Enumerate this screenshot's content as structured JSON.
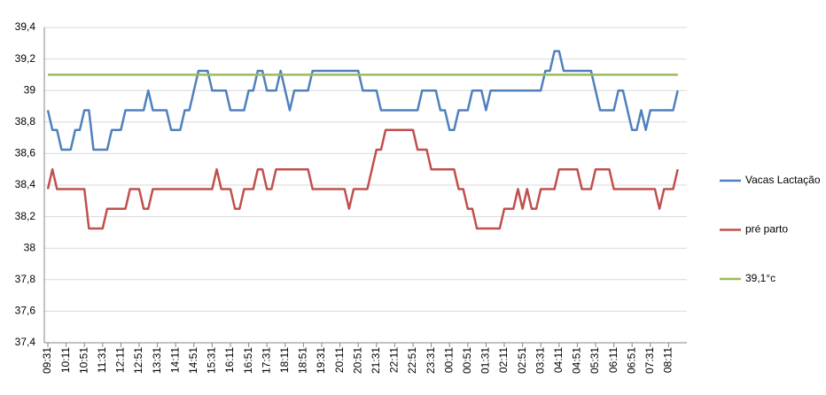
{
  "chart_data": {
    "type": "line",
    "categories": [
      "09:31",
      null,
      null,
      null,
      "10:11",
      null,
      null,
      null,
      "10:51",
      null,
      null,
      null,
      "11:31",
      null,
      null,
      null,
      "12:11",
      null,
      null,
      null,
      "12:51",
      null,
      null,
      null,
      "13:31",
      null,
      null,
      null,
      "14:11",
      null,
      null,
      null,
      "14:51",
      null,
      null,
      null,
      "15:31",
      null,
      null,
      null,
      "16:11",
      null,
      null,
      null,
      "16:51",
      null,
      null,
      null,
      "17:31",
      null,
      null,
      null,
      "18:11",
      null,
      null,
      null,
      "18:51",
      null,
      null,
      null,
      "19:31",
      null,
      null,
      null,
      "20:11",
      null,
      null,
      null,
      "20:51",
      null,
      null,
      null,
      "21:31",
      null,
      null,
      null,
      "22:11",
      null,
      null,
      null,
      "22:51",
      null,
      null,
      null,
      "23:31",
      null,
      null,
      null,
      "00:11",
      null,
      null,
      null,
      "00:51",
      null,
      null,
      null,
      "01:31",
      null,
      null,
      null,
      "02:11",
      null,
      null,
      null,
      "02:51",
      null,
      null,
      null,
      "03:31",
      null,
      null,
      null,
      "04:11",
      null,
      null,
      null,
      "04:51",
      null,
      null,
      null,
      "05:31",
      null,
      null,
      null,
      "06:11",
      null,
      null,
      null,
      "06:51",
      null,
      null,
      null,
      "07:31",
      null,
      null,
      null,
      "08:11",
      null,
      null
    ],
    "series": [
      {
        "name": "Vacas Lactação",
        "color": "#4f81bd",
        "values": [
          38.875,
          38.75,
          38.75,
          38.625,
          38.625,
          38.625,
          38.75,
          38.75,
          38.875,
          38.875,
          38.625,
          38.625,
          38.625,
          38.625,
          38.75,
          38.75,
          38.75,
          38.875,
          38.875,
          38.875,
          38.875,
          38.875,
          39,
          38.875,
          38.875,
          38.875,
          38.875,
          38.75,
          38.75,
          38.75,
          38.875,
          38.875,
          39,
          39.125,
          39.125,
          39.125,
          39,
          39,
          39,
          39,
          38.875,
          38.875,
          38.875,
          38.875,
          39,
          39,
          39.125,
          39.125,
          39,
          39,
          39,
          39.125,
          39,
          38.875,
          39,
          39,
          39,
          39,
          39.125,
          39.125,
          39.125,
          39.125,
          39.125,
          39.125,
          39.125,
          39.125,
          39.125,
          39.125,
          39.125,
          39,
          39,
          39,
          39,
          38.875,
          38.875,
          38.875,
          38.875,
          38.875,
          38.875,
          38.875,
          38.875,
          38.875,
          39,
          39,
          39,
          39,
          38.875,
          38.875,
          38.75,
          38.75,
          38.875,
          38.875,
          38.875,
          39,
          39,
          39,
          38.875,
          39,
          39,
          39,
          39,
          39,
          39,
          39,
          39,
          39,
          39,
          39,
          39,
          39.125,
          39.125,
          39.25,
          39.25,
          39.125,
          39.125,
          39.125,
          39.125,
          39.125,
          39.125,
          39.125,
          39,
          38.875,
          38.875,
          38.875,
          38.875,
          39,
          39,
          38.875,
          38.75,
          38.75,
          38.875,
          38.75,
          38.875,
          38.875,
          38.875,
          38.875,
          38.875,
          38.875,
          39
        ]
      },
      {
        "name": "pré parto",
        "color": "#c0504d",
        "values": [
          38.375,
          38.5,
          38.375,
          38.375,
          38.375,
          38.375,
          38.375,
          38.375,
          38.375,
          38.125,
          38.125,
          38.125,
          38.125,
          38.25,
          38.25,
          38.25,
          38.25,
          38.25,
          38.375,
          38.375,
          38.375,
          38.25,
          38.25,
          38.375,
          38.375,
          38.375,
          38.375,
          38.375,
          38.375,
          38.375,
          38.375,
          38.375,
          38.375,
          38.375,
          38.375,
          38.375,
          38.375,
          38.5,
          38.375,
          38.375,
          38.375,
          38.25,
          38.25,
          38.375,
          38.375,
          38.375,
          38.5,
          38.5,
          38.375,
          38.375,
          38.5,
          38.5,
          38.5,
          38.5,
          38.5,
          38.5,
          38.5,
          38.5,
          38.375,
          38.375,
          38.375,
          38.375,
          38.375,
          38.375,
          38.375,
          38.375,
          38.25,
          38.375,
          38.375,
          38.375,
          38.375,
          38.5,
          38.625,
          38.625,
          38.75,
          38.75,
          38.75,
          38.75,
          38.75,
          38.75,
          38.75,
          38.625,
          38.625,
          38.625,
          38.5,
          38.5,
          38.5,
          38.5,
          38.5,
          38.5,
          38.375,
          38.375,
          38.25,
          38.25,
          38.125,
          38.125,
          38.125,
          38.125,
          38.125,
          38.125,
          38.25,
          38.25,
          38.25,
          38.375,
          38.25,
          38.375,
          38.25,
          38.25,
          38.375,
          38.375,
          38.375,
          38.375,
          38.5,
          38.5,
          38.5,
          38.5,
          38.5,
          38.375,
          38.375,
          38.375,
          38.5,
          38.5,
          38.5,
          38.5,
          38.375,
          38.375,
          38.375,
          38.375,
          38.375,
          38.375,
          38.375,
          38.375,
          38.375,
          38.375,
          38.25,
          38.375,
          38.375,
          38.375,
          38.5
        ]
      },
      {
        "name": "39,1°c",
        "color": "#9bbb59",
        "values": [
          39.1,
          39.1,
          39.1,
          39.1,
          39.1,
          39.1,
          39.1,
          39.1,
          39.1,
          39.1,
          39.1,
          39.1,
          39.1,
          39.1,
          39.1,
          39.1,
          39.1,
          39.1,
          39.1,
          39.1,
          39.1,
          39.1,
          39.1,
          39.1,
          39.1,
          39.1,
          39.1,
          39.1,
          39.1,
          39.1,
          39.1,
          39.1,
          39.1,
          39.1,
          39.1,
          39.1,
          39.1,
          39.1,
          39.1,
          39.1,
          39.1,
          39.1,
          39.1,
          39.1,
          39.1,
          39.1,
          39.1,
          39.1,
          39.1,
          39.1,
          39.1,
          39.1,
          39.1,
          39.1,
          39.1,
          39.1,
          39.1,
          39.1,
          39.1,
          39.1,
          39.1,
          39.1,
          39.1,
          39.1,
          39.1,
          39.1,
          39.1,
          39.1,
          39.1,
          39.1,
          39.1,
          39.1,
          39.1,
          39.1,
          39.1,
          39.1,
          39.1,
          39.1,
          39.1,
          39.1,
          39.1,
          39.1,
          39.1,
          39.1,
          39.1,
          39.1,
          39.1,
          39.1,
          39.1,
          39.1,
          39.1,
          39.1,
          39.1,
          39.1,
          39.1,
          39.1,
          39.1,
          39.1,
          39.1,
          39.1,
          39.1,
          39.1,
          39.1,
          39.1,
          39.1,
          39.1,
          39.1,
          39.1,
          39.1,
          39.1,
          39.1,
          39.1,
          39.1,
          39.1,
          39.1,
          39.1,
          39.1,
          39.1,
          39.1,
          39.1,
          39.1,
          39.1,
          39.1,
          39.1,
          39.1,
          39.1,
          39.1,
          39.1,
          39.1,
          39.1,
          39.1,
          39.1,
          39.1,
          39.1,
          39.1,
          39.1,
          39.1,
          39.1,
          39.1
        ]
      }
    ],
    "ylim": [
      37.4,
      39.4
    ],
    "yticks": [
      {
        "value": 37.4,
        "label": "37,4"
      },
      {
        "value": 37.6,
        "label": "37,6"
      },
      {
        "value": 37.8,
        "label": "37,8"
      },
      38,
      {
        "value": 38.2,
        "label": "38,2"
      },
      {
        "value": 38.4,
        "label": "38,4"
      },
      {
        "value": 38.6,
        "label": "38,6"
      },
      {
        "value": 38.8,
        "label": "38,8"
      },
      39,
      {
        "value": 39.2,
        "label": "39,2"
      },
      {
        "value": 39.4,
        "label": "39,4"
      }
    ],
    "grid": true,
    "legend": "right"
  }
}
